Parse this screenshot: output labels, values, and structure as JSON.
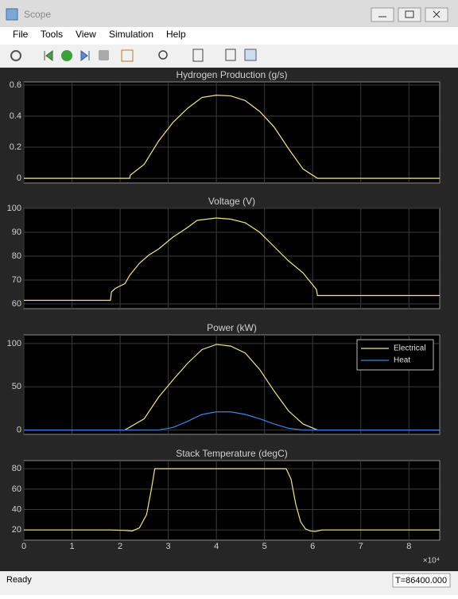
{
  "window": {
    "title": "Scope",
    "menu": [
      "File",
      "Tools",
      "View",
      "Simulation",
      "Help"
    ],
    "status": "Ready",
    "time": "T=86400.000"
  },
  "chart_data": [
    {
      "type": "line",
      "title": "Hydrogen Production (g/s)",
      "x": [
        0,
        2.2,
        2.21,
        2.5,
        2.8,
        3.1,
        3.4,
        3.7,
        4.0,
        4.3,
        4.6,
        4.9,
        5.2,
        5.5,
        5.8,
        6.1,
        8.64
      ],
      "series": [
        {
          "color": "#f2e58c",
          "values": [
            0,
            0,
            0.02,
            0.09,
            0.24,
            0.36,
            0.45,
            0.52,
            0.535,
            0.53,
            0.5,
            0.43,
            0.33,
            0.19,
            0.06,
            0,
            0
          ]
        }
      ],
      "ylim": [
        -0.03,
        0.62
      ],
      "yticks": [
        0,
        0.2,
        0.4,
        0.6
      ],
      "grid": true
    },
    {
      "type": "line",
      "title": "Voltage (V)",
      "x": [
        0,
        1.8,
        1.82,
        1.9,
        2.0,
        2.1,
        2.2,
        2.4,
        2.6,
        2.8,
        3.1,
        3.4,
        3.6,
        4.0,
        4.3,
        4.6,
        4.9,
        5.2,
        5.5,
        5.8,
        6.0,
        6.08,
        6.1,
        8.64
      ],
      "series": [
        {
          "color": "#f2e58c",
          "values": [
            61.5,
            61.5,
            65,
            66.5,
            67.5,
            68.5,
            72,
            77,
            80.5,
            83,
            88,
            92,
            95,
            96,
            95.5,
            94,
            90,
            84,
            78,
            73,
            68,
            66,
            63.5,
            63.5
          ]
        }
      ],
      "ylim": [
        58,
        100
      ],
      "yticks": [
        60,
        70,
        80,
        90,
        100
      ],
      "grid": true
    },
    {
      "type": "line",
      "title": "Power (kW)",
      "x": [
        0,
        2.1,
        2.5,
        2.8,
        3.1,
        3.4,
        3.7,
        4.0,
        4.3,
        4.6,
        4.9,
        5.2,
        5.5,
        5.8,
        6.1,
        8.64
      ],
      "series": [
        {
          "name": "Electrical",
          "color": "#f2e58c",
          "values": [
            0,
            0,
            13,
            38,
            58,
            77,
            93,
            99,
            97,
            89,
            70,
            45,
            22,
            7,
            0,
            0
          ]
        },
        {
          "name": "Heat",
          "color": "#3d86e0",
          "values": [
            0,
            0,
            0,
            0,
            3,
            10,
            18,
            21,
            21,
            18,
            13,
            7,
            2,
            0,
            0,
            0
          ]
        }
      ],
      "ylim": [
        -5,
        110
      ],
      "yticks": [
        0,
        50,
        100
      ],
      "grid": true,
      "legend": "upper right"
    },
    {
      "type": "line",
      "title": "Stack Temperature (degC)",
      "x": [
        0,
        1.8,
        2.1,
        2.25,
        2.4,
        2.55,
        2.65,
        2.72,
        5.45,
        5.55,
        5.65,
        5.75,
        5.85,
        5.95,
        6.05,
        6.2,
        8.64
      ],
      "series": [
        {
          "color": "#f2e58c",
          "values": [
            20,
            20,
            19.5,
            19,
            22,
            35,
            60,
            80,
            80,
            70,
            45,
            28,
            21,
            19,
            18.5,
            20,
            20
          ]
        }
      ],
      "ylim": [
        10,
        88
      ],
      "yticks": [
        20,
        40,
        60,
        80
      ],
      "grid": true,
      "xlim": [
        0,
        8.64
      ],
      "xticks": [
        0,
        1,
        2,
        3,
        4,
        5,
        6,
        7,
        8
      ],
      "x_scale_label": "×10⁴"
    }
  ]
}
